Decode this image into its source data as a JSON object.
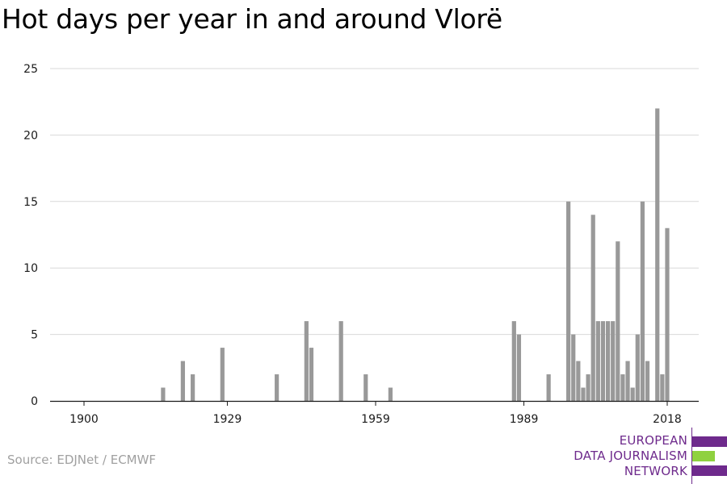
{
  "title": "Hot days per year in and around Vlorë",
  "source": "Source: EDJNet / ECMWF",
  "logo": {
    "line1": "EUROPEAN",
    "line2": "DATA JOURNALISM",
    "line3": "NETWORK",
    "colors": {
      "text": "#6e2a8c",
      "bar_purple": "#6e2a8c",
      "bar_green": "#8fd13f"
    }
  },
  "chart_data": {
    "type": "bar",
    "title": "Hot days per year in and around Vlorë",
    "xlabel": "",
    "ylabel": "",
    "ylim": [
      0,
      25
    ],
    "yticks": [
      0,
      5,
      10,
      15,
      20,
      25
    ],
    "xticks": [
      1900,
      1929,
      1959,
      1989,
      2018
    ],
    "xlim": [
      1899,
      2020
    ],
    "grid": true,
    "bar_color": "#999999",
    "data": [
      {
        "year": 1916,
        "value": 1
      },
      {
        "year": 1920,
        "value": 3
      },
      {
        "year": 1922,
        "value": 2
      },
      {
        "year": 1928,
        "value": 4
      },
      {
        "year": 1939,
        "value": 2
      },
      {
        "year": 1945,
        "value": 6
      },
      {
        "year": 1946,
        "value": 4
      },
      {
        "year": 1952,
        "value": 6
      },
      {
        "year": 1957,
        "value": 2
      },
      {
        "year": 1962,
        "value": 1
      },
      {
        "year": 1987,
        "value": 6
      },
      {
        "year": 1988,
        "value": 5
      },
      {
        "year": 1994,
        "value": 2
      },
      {
        "year": 1998,
        "value": 15
      },
      {
        "year": 1999,
        "value": 5
      },
      {
        "year": 2000,
        "value": 3
      },
      {
        "year": 2001,
        "value": 1
      },
      {
        "year": 2002,
        "value": 2
      },
      {
        "year": 2003,
        "value": 14
      },
      {
        "year": 2004,
        "value": 6
      },
      {
        "year": 2005,
        "value": 6
      },
      {
        "year": 2006,
        "value": 6
      },
      {
        "year": 2007,
        "value": 6
      },
      {
        "year": 2008,
        "value": 12
      },
      {
        "year": 2009,
        "value": 2
      },
      {
        "year": 2010,
        "value": 3
      },
      {
        "year": 2011,
        "value": 1
      },
      {
        "year": 2012,
        "value": 5
      },
      {
        "year": 2013,
        "value": 15
      },
      {
        "year": 2014,
        "value": 3
      },
      {
        "year": 2016,
        "value": 22
      },
      {
        "year": 2017,
        "value": 2
      },
      {
        "year": 2018,
        "value": 13
      }
    ]
  }
}
